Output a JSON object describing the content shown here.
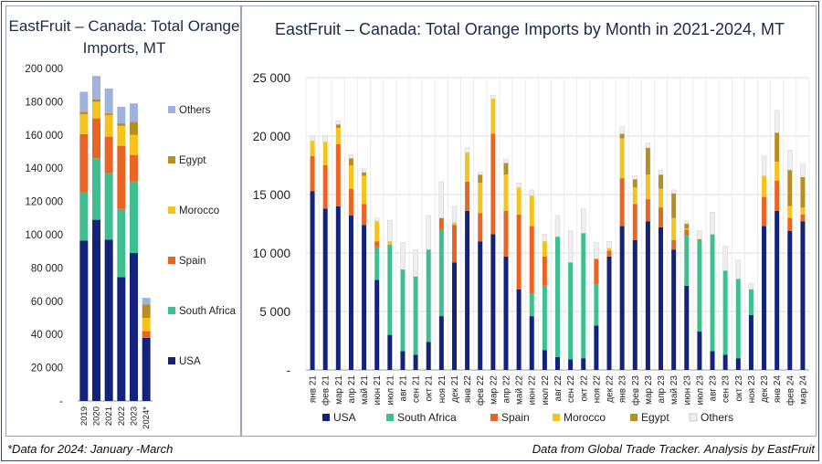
{
  "left_title": "EastFruit – Canada: Total Orange Imports, MT",
  "right_title": "EastFruit – Canada: Total Orange Imports by Month in 2021-2024, MT",
  "footnote_left": "*Data for 2024: January -March",
  "footnote_right": "Data from Global Trade Tracker. Analysis by EastFruit",
  "colors": {
    "USA": "#13227a",
    "South Africa": "#3fbf90",
    "Spain": "#ea6524",
    "Morocco": "#f6c21c",
    "Egypt": "#b88e22",
    "Others": "#9db3dd",
    "Others_monthly": "#eeeeee"
  },
  "chart_data": [
    {
      "type": "bar",
      "stacked": true,
      "title": "EastFruit – Canada: Total Orange Imports, MT",
      "categories": [
        "2019",
        "2020",
        "2021",
        "2022",
        "2023",
        "2024*"
      ],
      "ylim": [
        0,
        200000
      ],
      "yticks": [
        "-",
        "20 000",
        "40 000",
        "60 000",
        "80 000",
        "100 000",
        "120 000",
        "140 000",
        "160 000",
        "180 000",
        "200 000"
      ],
      "legend_position": "right",
      "series": [
        {
          "name": "USA",
          "values": [
            96500,
            109000,
            97000,
            74500,
            89000,
            38000
          ]
        },
        {
          "name": "South Africa",
          "values": [
            29000,
            37000,
            40000,
            41000,
            43000,
            0
          ]
        },
        {
          "name": "Spain",
          "values": [
            35000,
            24000,
            22000,
            38000,
            16000,
            4000
          ]
        },
        {
          "name": "Morocco",
          "values": [
            12000,
            10000,
            13000,
            12000,
            12000,
            8000
          ]
        },
        {
          "name": "Egypt",
          "values": [
            1500,
            1500,
            1000,
            1500,
            8000,
            8000
          ]
        },
        {
          "name": "Others",
          "values": [
            12000,
            14000,
            15000,
            10000,
            11000,
            4000
          ]
        }
      ]
    },
    {
      "type": "bar",
      "stacked": true,
      "title": "EastFruit – Canada: Total Orange Imports by Month in 2021-2024, MT",
      "categories": [
        "янв 21",
        "фев 21",
        "мар 21",
        "апр 21",
        "май 21",
        "июн 21",
        "июл 21",
        "авг 21",
        "сен 21",
        "окт 21",
        "ноя 21",
        "дек 21",
        "янв 22",
        "фев 22",
        "мар 22",
        "апр 22",
        "май 22",
        "июн 22",
        "июл 22",
        "авг 22",
        "сен 22",
        "окт 22",
        "ноя 22",
        "дек 22",
        "янв 23",
        "фев 23",
        "мар 23",
        "апр 23",
        "май 23",
        "июн 23",
        "июл 23",
        "авг 23",
        "сен 23",
        "окт 23",
        "ноя 23",
        "дек 23",
        "янв 24",
        "фев 24",
        "мар 24"
      ],
      "ylim": [
        0,
        25000
      ],
      "yticks": [
        "-",
        "5 000",
        "10 000",
        "15 000",
        "20 000",
        "25 000"
      ],
      "legend_position": "bottom",
      "series": [
        {
          "name": "USA",
          "values": [
            15300,
            13800,
            14000,
            13200,
            12400,
            7700,
            3000,
            1600,
            1300,
            2400,
            4600,
            9200,
            13600,
            11000,
            11600,
            9700,
            6900,
            4600,
            1700,
            1100,
            900,
            1000,
            3800,
            9700,
            12300,
            11100,
            12700,
            12200,
            10300,
            7200,
            3300,
            1600,
            1300,
            1000,
            4700,
            12300,
            13600,
            11900,
            12700
          ]
        },
        {
          "name": "South Africa",
          "values": [
            0,
            0,
            0,
            0,
            0,
            2800,
            7700,
            7000,
            6700,
            7900,
            7400,
            0,
            0,
            0,
            0,
            0,
            0,
            1900,
            5500,
            10300,
            8300,
            10700,
            3500,
            0,
            0,
            0,
            0,
            0,
            0,
            4300,
            7800,
            10000,
            7200,
            6800,
            2200,
            0,
            0,
            0,
            0
          ]
        },
        {
          "name": "Spain",
          "values": [
            3000,
            3700,
            5300,
            2300,
            1800,
            500,
            0,
            0,
            0,
            0,
            1000,
            3200,
            2500,
            2400,
            8600,
            3900,
            6400,
            5800,
            2500,
            0,
            0,
            0,
            2200,
            500,
            4100,
            3100,
            1900,
            1700,
            800,
            500,
            0,
            0,
            0,
            0,
            0,
            2500,
            2600,
            1100,
            600
          ]
        },
        {
          "name": "Morocco",
          "values": [
            1300,
            2000,
            1400,
            2000,
            2400,
            1700,
            300,
            0,
            0,
            0,
            0,
            200,
            2500,
            2600,
            3000,
            3100,
            2300,
            2600,
            1300,
            0,
            0,
            0,
            0,
            200,
            3400,
            1400,
            2100,
            1600,
            1900,
            100,
            0,
            0,
            0,
            0,
            0,
            1800,
            1600,
            1000,
            600
          ]
        },
        {
          "name": "Egypt",
          "values": [
            0,
            0,
            300,
            600,
            300,
            0,
            0,
            0,
            0,
            0,
            0,
            0,
            0,
            700,
            0,
            1000,
            0,
            0,
            0,
            0,
            0,
            0,
            0,
            0,
            400,
            700,
            2300,
            1200,
            2100,
            400,
            100,
            0,
            0,
            0,
            0,
            0,
            2500,
            3100,
            2600
          ]
        },
        {
          "name": "Others",
          "values": [
            400,
            500,
            300,
            300,
            300,
            300,
            1800,
            2300,
            2300,
            2900,
            3100,
            1400,
            400,
            200,
            300,
            300,
            400,
            500,
            600,
            1800,
            2700,
            2100,
            1400,
            600,
            600,
            300,
            400,
            400,
            300,
            200,
            700,
            1900,
            2100,
            1600,
            500,
            1700,
            1900,
            1700,
            1100
          ]
        }
      ]
    }
  ]
}
